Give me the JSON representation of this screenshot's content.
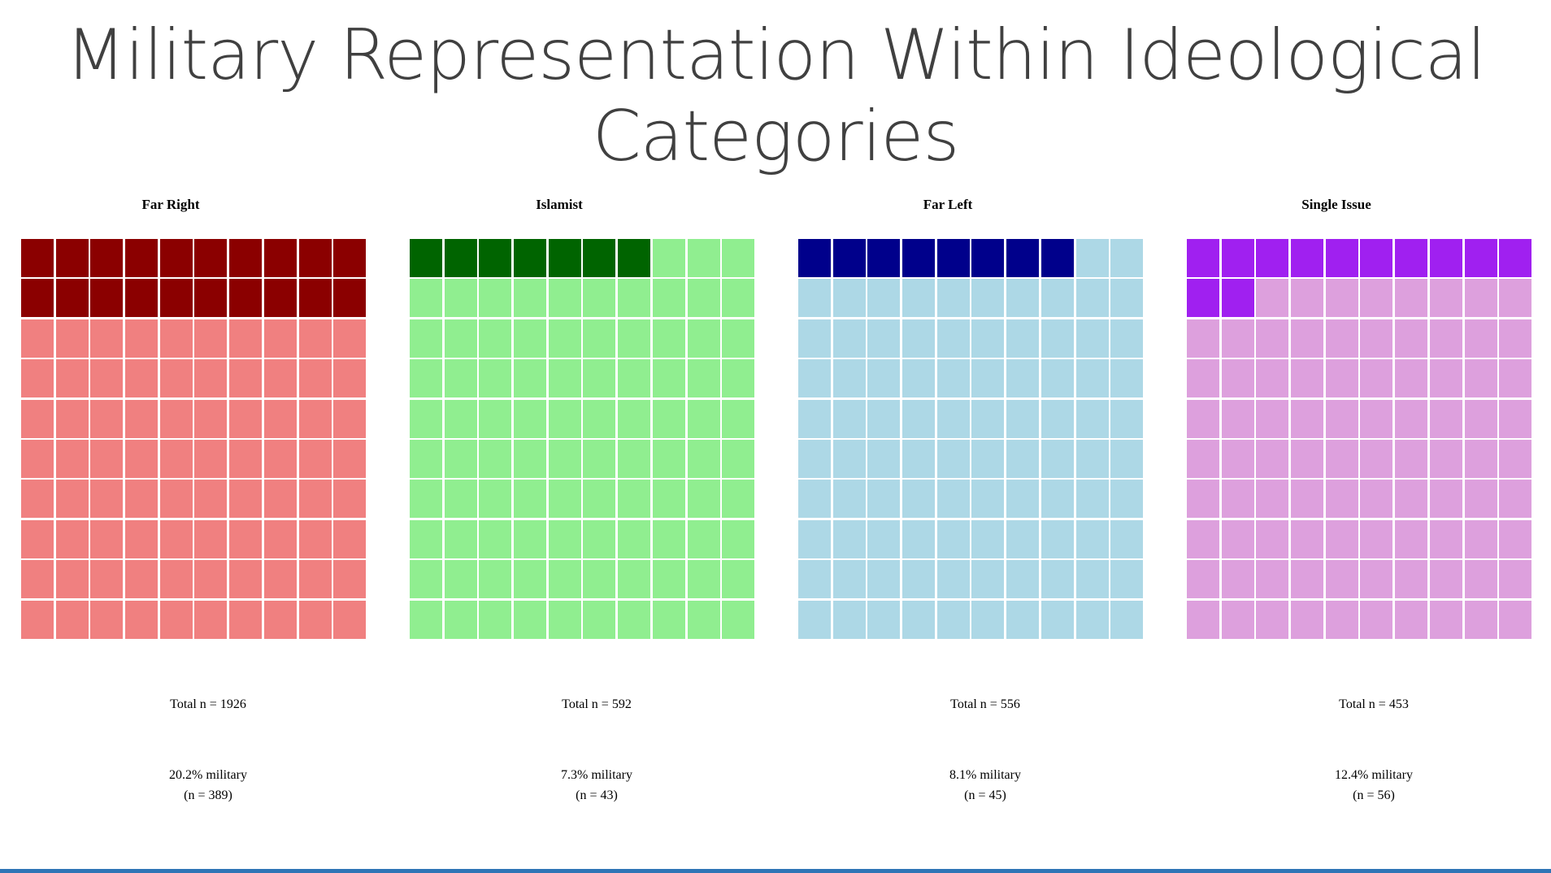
{
  "title": "Military Representation Within Ideological Categories",
  "chart_data": [
    {
      "type": "waffle",
      "title": "Far Right",
      "total_label": "Total n = 1926",
      "percent_label": "20.2% military",
      "count_label": "(n = 389)",
      "grid": [
        10,
        10
      ],
      "filled_squares": 20,
      "total_squares": 100,
      "colors": {
        "filled": "#8b0000",
        "empty": "#f08080"
      }
    },
    {
      "type": "waffle",
      "title": "Islamist",
      "total_label": "Total n = 592",
      "percent_label": "7.3% military",
      "count_label": "(n = 43)",
      "grid": [
        10,
        10
      ],
      "filled_squares": 7,
      "total_squares": 100,
      "colors": {
        "filled": "#006400",
        "empty": "#90ee90"
      }
    },
    {
      "type": "waffle",
      "title": "Far Left",
      "total_label": "Total n = 556",
      "percent_label": "8.1% military",
      "count_label": "(n = 45)",
      "grid": [
        10,
        10
      ],
      "filled_squares": 8,
      "total_squares": 100,
      "colors": {
        "filled": "#00008b",
        "empty": "#add8e6"
      }
    },
    {
      "type": "waffle",
      "title": "Single Issue",
      "total_label": "Total n = 453",
      "percent_label": "12.4% military",
      "count_label": "(n = 56)",
      "grid": [
        10,
        10
      ],
      "filled_squares": 12,
      "total_squares": 100,
      "colors": {
        "filled": "#a020f0",
        "empty": "#dda0dd"
      }
    }
  ],
  "accent_color": "#2e75b6"
}
